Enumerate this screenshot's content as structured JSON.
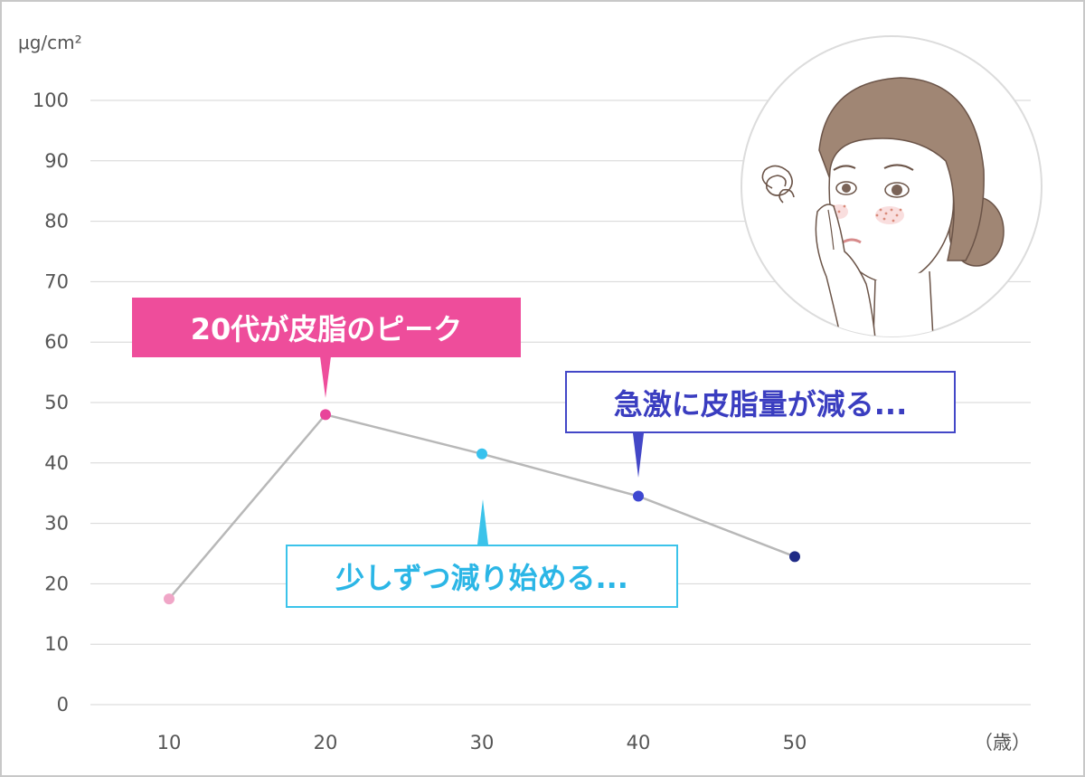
{
  "chart_data": {
    "type": "line",
    "y_unit": "μg/cm²",
    "x_unit": "（歳）",
    "x": [
      10,
      20,
      30,
      40,
      50
    ],
    "series": [
      {
        "values": [
          17.5,
          48,
          41.5,
          34.5,
          24.5
        ]
      }
    ],
    "point_colors": [
      "#f0a6c7",
      "#e8449a",
      "#38c2ee",
      "#3d47d1",
      "#1e2a86"
    ],
    "line_color": "#b8b8b8",
    "ylim": [
      0,
      100
    ],
    "yticks": [
      0,
      10,
      20,
      30,
      40,
      50,
      60,
      70,
      80,
      90,
      100
    ],
    "grid": true,
    "annotations": [
      {
        "text": "20代が皮脂のピーク",
        "style": "filled-pink"
      },
      {
        "text": "少しずつ減り始める...",
        "style": "outlined-cyan"
      },
      {
        "text": "急激に皮脂量が減る...",
        "style": "outlined-blue"
      }
    ]
  }
}
